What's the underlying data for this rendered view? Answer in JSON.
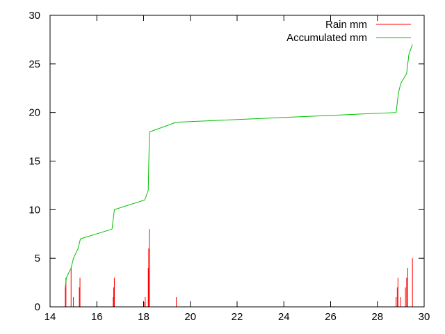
{
  "chart_data": {
    "type": "bar",
    "title": "",
    "xlabel": "",
    "ylabel": "",
    "xlim": [
      14,
      30
    ],
    "ylim": [
      0,
      30
    ],
    "x_ticks": [
      14,
      16,
      18,
      20,
      22,
      24,
      26,
      28,
      30
    ],
    "y_ticks": [
      0,
      5,
      10,
      15,
      20,
      25,
      30
    ],
    "x_tick_labels": [
      "14",
      "16",
      "18",
      "20",
      "22",
      "24",
      "26",
      "28",
      "30"
    ],
    "y_tick_labels": [
      "0",
      "5",
      "10",
      "15",
      "20",
      "25",
      "30"
    ],
    "grid": false,
    "legend_position": "top-right",
    "series": [
      {
        "name": "Rain mm",
        "type": "impulse",
        "color": "#ff0000",
        "x": [
          14.65,
          14.68,
          14.9,
          15.0,
          15.25,
          15.28,
          16.7,
          16.72,
          16.75,
          18.05,
          18.07,
          18.2,
          18.22,
          18.25,
          19.4,
          28.8,
          28.85,
          28.88,
          29.0,
          29.2,
          29.25,
          29.3,
          29.5
        ],
        "values": [
          2,
          3,
          4,
          1,
          2,
          3,
          1,
          2,
          3,
          0.5,
          1,
          4,
          6,
          8,
          1,
          1,
          2,
          3,
          1,
          2,
          3,
          4,
          5
        ]
      },
      {
        "name": "Accumulated mm",
        "type": "line",
        "color": "#00c000",
        "x": [
          14.65,
          14.7,
          14.9,
          15.0,
          15.2,
          15.3,
          16.65,
          16.75,
          18.05,
          18.2,
          18.25,
          19.4,
          28.8,
          28.9,
          29.0,
          29.25,
          29.35,
          29.5
        ],
        "values": [
          2,
          3,
          4,
          5,
          6,
          7,
          8,
          10,
          11,
          12,
          18,
          19,
          20,
          22,
          23,
          24,
          26,
          27
        ]
      }
    ]
  },
  "colors": {
    "axis": "#000000",
    "background": "#ffffff"
  }
}
